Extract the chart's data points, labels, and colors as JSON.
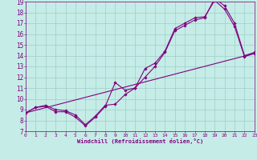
{
  "xlabel": "Windchill (Refroidissement éolien,°C)",
  "bg_color": "#c5ece6",
  "line_color": "#800080",
  "grid_color": "#9ecfca",
  "xmin": 0,
  "xmax": 23,
  "ymin": 7,
  "ymax": 19,
  "line1_x": [
    0,
    1,
    2,
    3,
    4,
    5,
    6,
    7,
    8,
    9,
    10,
    11,
    12,
    13,
    14,
    15,
    16,
    17,
    18,
    19,
    20,
    21,
    22,
    23
  ],
  "line1_y": [
    8.7,
    9.2,
    9.3,
    8.8,
    8.8,
    8.3,
    7.5,
    8.3,
    9.3,
    11.5,
    10.8,
    11.0,
    12.8,
    13.3,
    14.4,
    16.5,
    17.0,
    17.5,
    17.6,
    19.1,
    18.3,
    16.7,
    13.9,
    14.2
  ],
  "line2_x": [
    0,
    1,
    2,
    3,
    4,
    5,
    6,
    7,
    8,
    9,
    10,
    11,
    12,
    13,
    14,
    15,
    16,
    17,
    18,
    19,
    20,
    21,
    22,
    23
  ],
  "line2_y": [
    8.7,
    9.2,
    9.4,
    9.0,
    8.9,
    8.5,
    7.6,
    8.4,
    9.4,
    9.5,
    10.4,
    11.0,
    12.0,
    13.0,
    14.3,
    16.3,
    16.8,
    17.3,
    17.5,
    19.3,
    18.6,
    17.0,
    14.0,
    14.3
  ],
  "line3_x": [
    0,
    23
  ],
  "line3_y": [
    8.7,
    14.2
  ]
}
